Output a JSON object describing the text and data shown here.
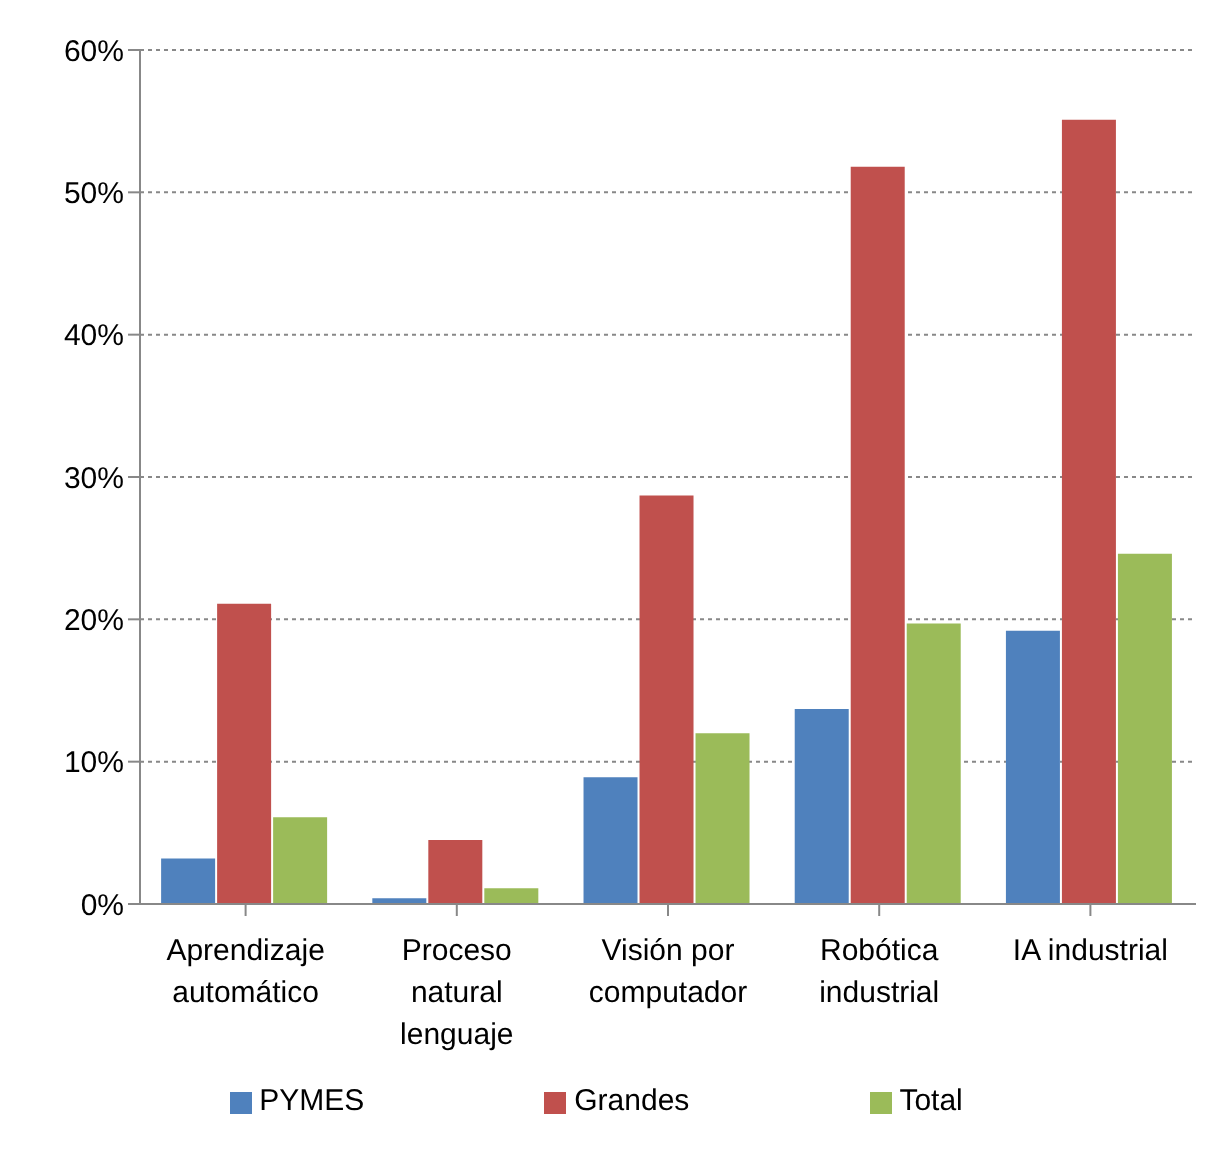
{
  "chart_data": {
    "type": "bar",
    "categories": [
      "Aprendizaje automático",
      "Proceso natural lenguaje",
      "Visión por computador",
      "Robótica industrial",
      "IA industrial"
    ],
    "series": [
      {
        "name": "PYMES",
        "color": "#4f81bd",
        "values": [
          3.2,
          0.4,
          8.9,
          13.7,
          19.2
        ]
      },
      {
        "name": "Grandes",
        "color": "#c0504d",
        "values": [
          21.1,
          4.5,
          28.7,
          51.8,
          55.1
        ]
      },
      {
        "name": "Total",
        "color": "#9bbb59",
        "values": [
          6.1,
          1.1,
          12.0,
          19.7,
          24.6
        ]
      }
    ],
    "ylim": [
      0,
      60
    ],
    "yticks": [
      {
        "value": 0,
        "label": "0%"
      },
      {
        "value": 10,
        "label": "10%"
      },
      {
        "value": 20,
        "label": "20%"
      },
      {
        "value": 30,
        "label": "30%"
      },
      {
        "value": 40,
        "label": "40%"
      },
      {
        "value": 50,
        "label": "50%"
      },
      {
        "value": 60,
        "label": "60%"
      }
    ],
    "grid": "y",
    "legend": "bottom"
  }
}
